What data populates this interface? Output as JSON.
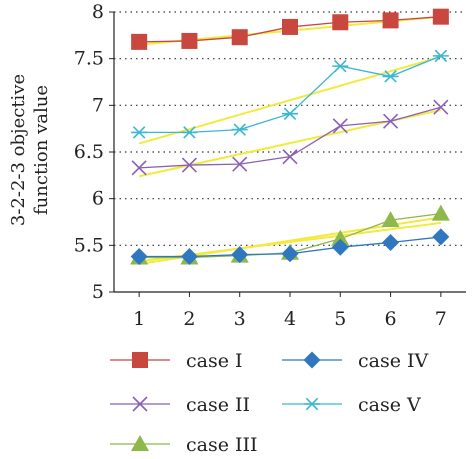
{
  "chart_data": {
    "type": "line",
    "ylabel_lines": [
      "3-2-2-3 objective",
      "function value"
    ],
    "x": [
      1,
      2,
      3,
      4,
      5,
      6,
      7
    ],
    "xlim": [
      0.5,
      7.5
    ],
    "ylim": [
      5,
      8
    ],
    "yticks": [
      5,
      5.5,
      6,
      6.5,
      7,
      7.5,
      8
    ],
    "ytick_labels": [
      "5",
      "5.5",
      "6",
      "6.5",
      "7",
      "7.5",
      "8"
    ],
    "xtick_labels": [
      "1",
      "2",
      "3",
      "4",
      "5",
      "6",
      "7"
    ],
    "grid": "dotted horizontal",
    "legend_position": "bottom",
    "trend_color": "#f2ea3c",
    "series": [
      {
        "name": "case I",
        "marker": "square",
        "color": "#c8473f",
        "values": [
          7.68,
          7.69,
          7.73,
          7.84,
          7.89,
          7.91,
          7.95
        ],
        "trend": [
          7.65,
          7.95
        ]
      },
      {
        "name": "case II",
        "marker": "x",
        "color": "#8b5fb4",
        "values": [
          6.33,
          6.36,
          6.37,
          6.45,
          6.78,
          6.83,
          6.98
        ],
        "trend": [
          6.24,
          6.95
        ]
      },
      {
        "name": "case III",
        "marker": "triangle",
        "color": "#8db84a",
        "values": [
          5.37,
          5.37,
          5.39,
          5.42,
          5.57,
          5.77,
          5.84
        ],
        "trend": [
          5.3,
          5.8
        ]
      },
      {
        "name": "case IV",
        "marker": "diamond",
        "color": "#2f77be",
        "values": [
          5.38,
          5.38,
          5.4,
          5.41,
          5.48,
          5.53,
          5.59
        ],
        "trend": [
          5.33,
          5.74
        ]
      },
      {
        "name": "case V",
        "marker": "asterisk",
        "color": "#3ab7d1",
        "values": [
          6.71,
          6.71,
          6.74,
          6.91,
          7.42,
          7.31,
          7.53
        ],
        "trend": [
          6.59,
          7.52
        ]
      }
    ]
  }
}
